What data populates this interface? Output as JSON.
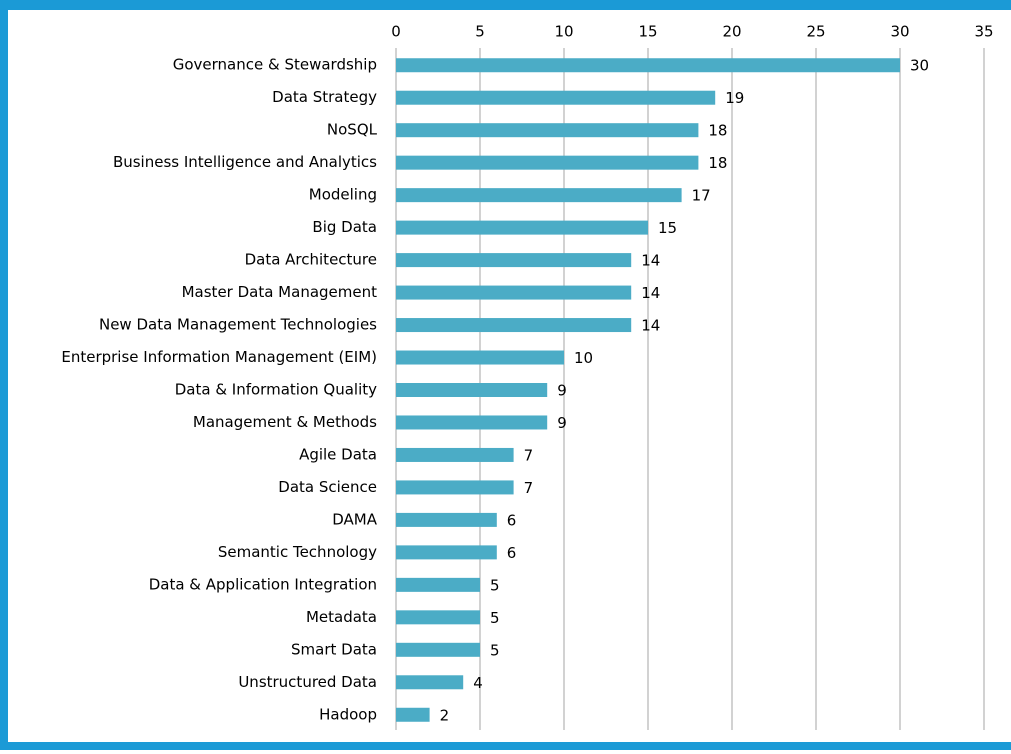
{
  "chart_data": {
    "type": "bar",
    "orientation": "horizontal",
    "categories": [
      "Governance & Stewardship",
      "Data Strategy",
      "NoSQL",
      "Business Intelligence and Analytics",
      "Modeling",
      "Big Data",
      "Data Architecture",
      "Master Data Management",
      "New Data Management Technologies",
      "Enterprise Information Management (EIM)",
      "Data & Information Quality",
      "Management & Methods",
      "Agile Data",
      "Data Science",
      "DAMA",
      "Semantic Technology",
      "Data & Application Integration",
      "Metadata",
      "Smart Data",
      "Unstructured Data",
      "Hadoop"
    ],
    "values": [
      30,
      19,
      18,
      18,
      17,
      15,
      14,
      14,
      14,
      10,
      9,
      9,
      7,
      7,
      6,
      6,
      5,
      5,
      5,
      4,
      2
    ],
    "color": "#4bacc6",
    "xlim": [
      0,
      35
    ],
    "xticks": [
      0,
      5,
      10,
      15,
      20,
      25,
      30,
      35
    ],
    "grid": true
  }
}
